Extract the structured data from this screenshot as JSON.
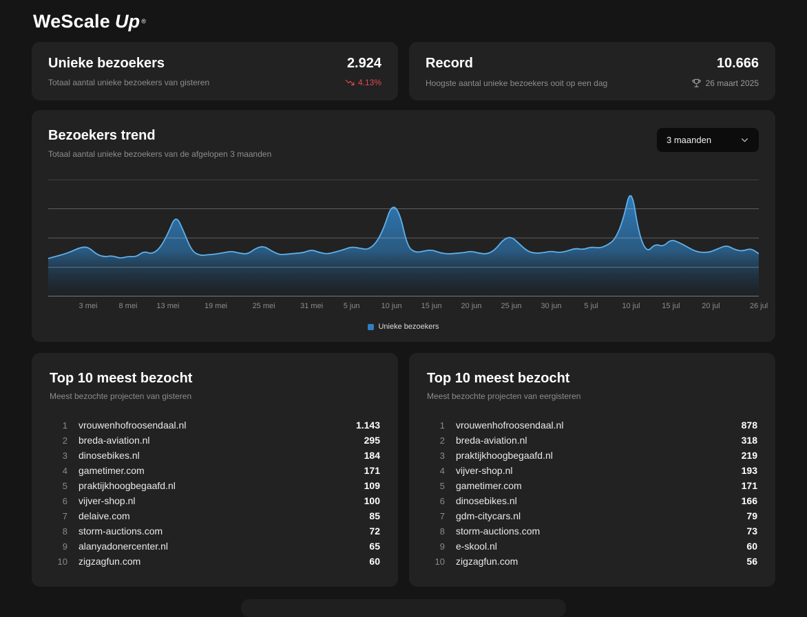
{
  "brand": {
    "name_primary": "WeScale",
    "name_secondary": "Up",
    "registered": "®"
  },
  "stats": [
    {
      "title": "Unieke bezoekers",
      "subtitle": "Totaal aantal unieke bezoekers van gisteren",
      "value": "2.924",
      "delta": "4.13%",
      "delta_direction": "down",
      "delta_color": "#e5484d"
    },
    {
      "title": "Record",
      "subtitle": "Hoogste aantal unieke bezoekers ooit op een dag",
      "value": "10.666",
      "date": "26 maart 2025"
    }
  ],
  "trend": {
    "title": "Bezoekers trend",
    "subtitle": "Totaal aantal unieke bezoekers van de afgelopen 3 maanden",
    "range_selector": "3 maanden",
    "legend": "Unieke bezoekers"
  },
  "chart_data": {
    "type": "area",
    "title": "Bezoekers trend",
    "xlabel": "",
    "ylabel": "",
    "legend": "Unieke bezoekers",
    "legend_position": "bottom-center",
    "grid": true,
    "ylim": [
      0,
      8000
    ],
    "gridlines": [
      2000,
      4000,
      6000,
      8000
    ],
    "line_color": "#5fb0ea",
    "fill_color": "#2f7fc0",
    "x_tick_labels": [
      "3 mei",
      "8 mei",
      "13 mei",
      "19 mei",
      "25 mei",
      "31 mei",
      "5 jun",
      "10 jun",
      "15 jun",
      "20 jun",
      "25 jun",
      "30 jun",
      "5 jul",
      "10 jul",
      "15 jul",
      "20 jul",
      "26 jul"
    ],
    "x_tick_indices": [
      5,
      10,
      15,
      21,
      27,
      33,
      38,
      43,
      48,
      53,
      58,
      63,
      68,
      73,
      78,
      83,
      89
    ],
    "values": [
      2600,
      2750,
      2900,
      3100,
      3350,
      3400,
      2900,
      2700,
      2800,
      2600,
      2750,
      2700,
      3100,
      2900,
      3300,
      4300,
      5600,
      4400,
      3100,
      2800,
      2850,
      2900,
      3000,
      3100,
      2950,
      2900,
      3300,
      3450,
      3100,
      2850,
      2900,
      2950,
      3000,
      3200,
      3000,
      2900,
      3050,
      3200,
      3400,
      3300,
      3200,
      3600,
      4600,
      6300,
      5800,
      3400,
      3000,
      3100,
      3200,
      3000,
      2900,
      2950,
      3000,
      3100,
      2950,
      2900,
      3200,
      3900,
      4100,
      3600,
      3100,
      2950,
      3000,
      3100,
      3000,
      3100,
      3300,
      3200,
      3400,
      3300,
      3500,
      3900,
      5200,
      7600,
      4200,
      3000,
      3600,
      3400,
      3900,
      3700,
      3400,
      3100,
      3000,
      3050,
      3300,
      3500,
      3200,
      3100,
      3300,
      2924
    ]
  },
  "top_lists": [
    {
      "title": "Top 10 meest bezocht",
      "subtitle": "Meest bezochte projecten van gisteren",
      "rows": [
        {
          "rank": "1",
          "name": "vrouwenhofroosendaal.nl",
          "value": "1.143"
        },
        {
          "rank": "2",
          "name": "breda-aviation.nl",
          "value": "295"
        },
        {
          "rank": "3",
          "name": "dinosebikes.nl",
          "value": "184"
        },
        {
          "rank": "4",
          "name": "gametimer.com",
          "value": "171"
        },
        {
          "rank": "5",
          "name": "praktijkhoogbegaafd.nl",
          "value": "109"
        },
        {
          "rank": "6",
          "name": "vijver-shop.nl",
          "value": "100"
        },
        {
          "rank": "7",
          "name": "delaive.com",
          "value": "85"
        },
        {
          "rank": "8",
          "name": "storm-auctions.com",
          "value": "72"
        },
        {
          "rank": "9",
          "name": "alanyadonercenter.nl",
          "value": "65"
        },
        {
          "rank": "10",
          "name": "zigzagfun.com",
          "value": "60"
        }
      ]
    },
    {
      "title": "Top 10 meest bezocht",
      "subtitle": "Meest bezochte projecten van eergisteren",
      "rows": [
        {
          "rank": "1",
          "name": "vrouwenhofroosendaal.nl",
          "value": "878"
        },
        {
          "rank": "2",
          "name": "breda-aviation.nl",
          "value": "318"
        },
        {
          "rank": "3",
          "name": "praktijkhoogbegaafd.nl",
          "value": "219"
        },
        {
          "rank": "4",
          "name": "vijver-shop.nl",
          "value": "193"
        },
        {
          "rank": "5",
          "name": "gametimer.com",
          "value": "171"
        },
        {
          "rank": "6",
          "name": "dinosebikes.nl",
          "value": "166"
        },
        {
          "rank": "7",
          "name": "gdm-citycars.nl",
          "value": "79"
        },
        {
          "rank": "8",
          "name": "storm-auctions.com",
          "value": "73"
        },
        {
          "rank": "9",
          "name": "e-skool.nl",
          "value": "60"
        },
        {
          "rank": "10",
          "name": "zigzagfun.com",
          "value": "56"
        }
      ]
    }
  ]
}
